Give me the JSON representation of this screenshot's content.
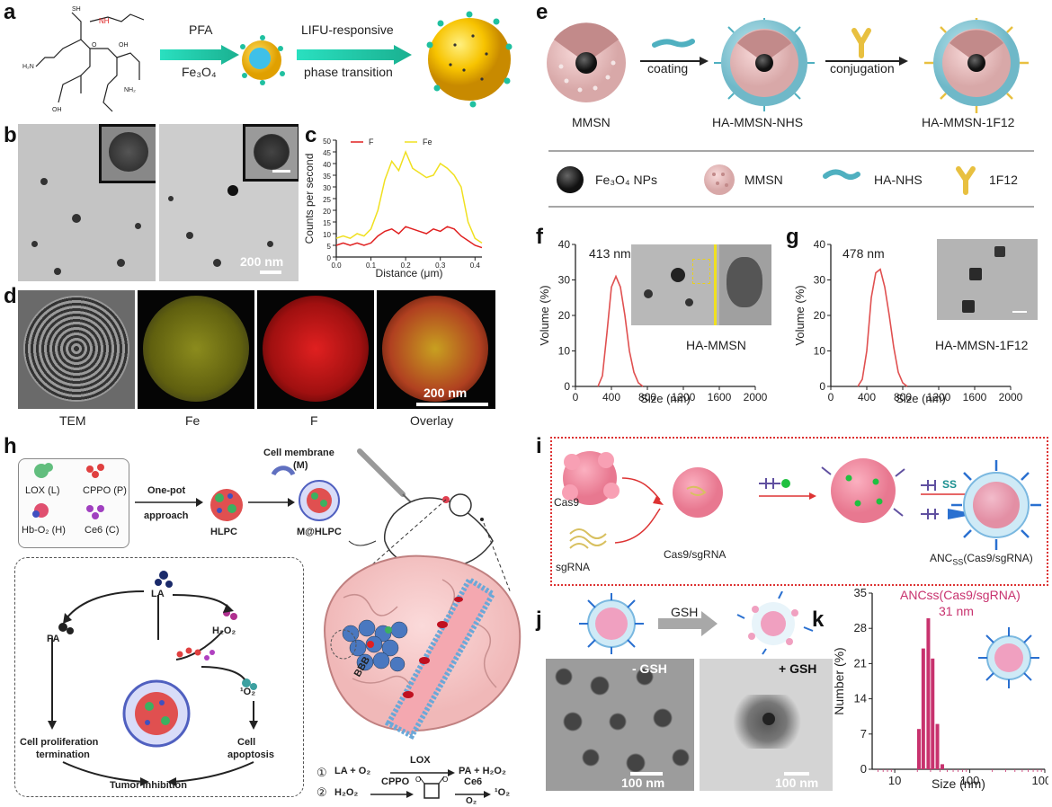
{
  "panels": {
    "a": {
      "letter": "a",
      "arrow1_top": "PFA",
      "arrow1_bottom": "Fe₃O₄",
      "arrow2_top": "LIFU-responsive",
      "arrow2_bottom": "phase transition"
    },
    "b": {
      "letter": "b",
      "scale": "200 nm"
    },
    "c": {
      "letter": "c"
    },
    "d": {
      "letter": "d",
      "captions": [
        "TEM",
        "Fe",
        "F",
        "Overlay"
      ],
      "scale": "200 nm"
    },
    "e": {
      "letter": "e",
      "arrow1": "coating",
      "arrow2": "conjugation",
      "labels": [
        "MMSN",
        "HA-MMSN-NHS",
        "HA-MMSN-1F12"
      ],
      "legend": [
        "Fe₃O₄ NPs",
        "MMSN",
        "HA-NHS",
        "1F12"
      ]
    },
    "f": {
      "letter": "f",
      "peak_label": "413 nm",
      "name": "HA-MMSN"
    },
    "g": {
      "letter": "g",
      "peak_label": "478 nm",
      "name": "HA-MMSN-1F12"
    },
    "h": {
      "letter": "h",
      "components": [
        "LOX (L)",
        "CPPO (P)",
        "Hb-O₂ (H)",
        "Ce6 (C)"
      ],
      "onepot_top": "One-pot",
      "onepot_bottom": "approach",
      "hlpc": "HLPC",
      "membrane_1": "Cell membrane",
      "membrane_2": "(M)",
      "mhlpc": "M@HLPC",
      "la": "LA",
      "pa": "PA",
      "h2o2": "H₂O₂",
      "singlet": "¹O₂",
      "prolif_1": "Cell proliferation",
      "prolif_2": "termination",
      "apop_1": "Cell",
      "apop_2": "apoptosis",
      "tumor": "Tumor inhibition",
      "bbb": "BBB",
      "eq1_num": "①",
      "eq1_left": "LA  +  O₂",
      "eq1_enzyme": "LOX",
      "eq1_right": "PA  +  H₂O₂",
      "eq2_num": "②",
      "eq2_left": "H₂O₂",
      "eq2_enzyme": "CPPO",
      "eq2_ce6": "Ce6",
      "eq2_o2": "O₂",
      "eq2_right": "¹O₂"
    },
    "i": {
      "letter": "i",
      "cas9": "Cas9",
      "sgrna": "sgRNA",
      "complex": "Cas9/sgRNA",
      "ss": "SS",
      "anc_prefix": "ANC",
      "anc_sub": "SS",
      "anc_suffix": "(Cas9/sgRNA)"
    },
    "j": {
      "letter": "j",
      "gsh": "GSH",
      "minus": "- GSH",
      "plus": "+ GSH",
      "scale1": "100 nm",
      "scale2": "100 nm"
    },
    "k": {
      "letter": "k",
      "title_1": "ANCss(Cas9/sgRNA)",
      "title_2": "31 nm"
    }
  },
  "chart_data": [
    {
      "panel": "c",
      "type": "line",
      "xlabel": "Distance (μm)",
      "ylabel": "Counts per second",
      "xlim": [
        0,
        0.42
      ],
      "ylim": [
        0,
        50
      ],
      "xticks": [
        "0.0",
        "0.1",
        "0.2",
        "0.3",
        "0.4"
      ],
      "yticks": [
        "0",
        "5",
        "10",
        "15",
        "20",
        "25",
        "30",
        "35",
        "40",
        "45",
        "50"
      ],
      "legend_position": "top",
      "series": [
        {
          "name": "F",
          "color": "#e02020",
          "x": [
            0.0,
            0.02,
            0.04,
            0.06,
            0.08,
            0.1,
            0.12,
            0.14,
            0.16,
            0.18,
            0.2,
            0.22,
            0.24,
            0.26,
            0.28,
            0.3,
            0.32,
            0.34,
            0.36,
            0.38,
            0.4,
            0.42
          ],
          "y": [
            5,
            6,
            5,
            6,
            5,
            6,
            9,
            11,
            12,
            10,
            13,
            12,
            11,
            10,
            12,
            11,
            13,
            12,
            9,
            7,
            5,
            4
          ]
        },
        {
          "name": "Fe",
          "color": "#f0e020",
          "x": [
            0.0,
            0.02,
            0.04,
            0.06,
            0.08,
            0.1,
            0.12,
            0.14,
            0.16,
            0.18,
            0.2,
            0.22,
            0.24,
            0.26,
            0.28,
            0.3,
            0.32,
            0.34,
            0.36,
            0.38,
            0.4,
            0.42
          ],
          "y": [
            8,
            9,
            8,
            10,
            9,
            12,
            20,
            33,
            41,
            37,
            45,
            38,
            36,
            34,
            35,
            40,
            38,
            35,
            30,
            15,
            8,
            6
          ]
        }
      ]
    },
    {
      "panel": "f",
      "type": "line",
      "xlabel": "Size (nm)",
      "ylabel": "Volume (%)",
      "xlim": [
        0,
        2000
      ],
      "ylim": [
        0,
        40
      ],
      "xticks": [
        "0",
        "400",
        "800",
        "1200",
        "1600",
        "2000"
      ],
      "yticks": [
        "0",
        "10",
        "20",
        "30",
        "40"
      ],
      "series": [
        {
          "name": "",
          "color": "#e05050",
          "x": [
            250,
            300,
            350,
            400,
            450,
            500,
            550,
            600,
            650,
            700,
            750
          ],
          "y": [
            0,
            3,
            15,
            28,
            31,
            28,
            20,
            10,
            4,
            1,
            0
          ]
        }
      ]
    },
    {
      "panel": "g",
      "type": "line",
      "xlabel": "Size (nm)",
      "ylabel": "Volume (%)",
      "xlim": [
        0,
        2000
      ],
      "ylim": [
        0,
        40
      ],
      "xticks": [
        "0",
        "400",
        "800",
        "1200",
        "1600",
        "2000"
      ],
      "yticks": [
        "0",
        "10",
        "20",
        "30",
        "40"
      ],
      "series": [
        {
          "name": "",
          "color": "#e05050",
          "x": [
            300,
            350,
            400,
            450,
            500,
            550,
            600,
            650,
            700,
            750,
            800,
            850
          ],
          "y": [
            0,
            2,
            10,
            25,
            32,
            33,
            28,
            20,
            11,
            4,
            1,
            0
          ]
        }
      ]
    },
    {
      "panel": "k",
      "type": "bar",
      "xlabel": "Size (nm)",
      "ylabel": "Number (%)",
      "xscale": "log",
      "xlim": [
        5,
        1000
      ],
      "ylim": [
        0,
        35
      ],
      "xticks": [
        "10",
        "100",
        "1000"
      ],
      "yticks": [
        "0",
        "7",
        "14",
        "21",
        "28",
        "35"
      ],
      "color": "#c8326e",
      "x": [
        21,
        24,
        28,
        32,
        37,
        43
      ],
      "y": [
        8,
        24,
        30,
        22,
        9,
        1
      ]
    }
  ]
}
